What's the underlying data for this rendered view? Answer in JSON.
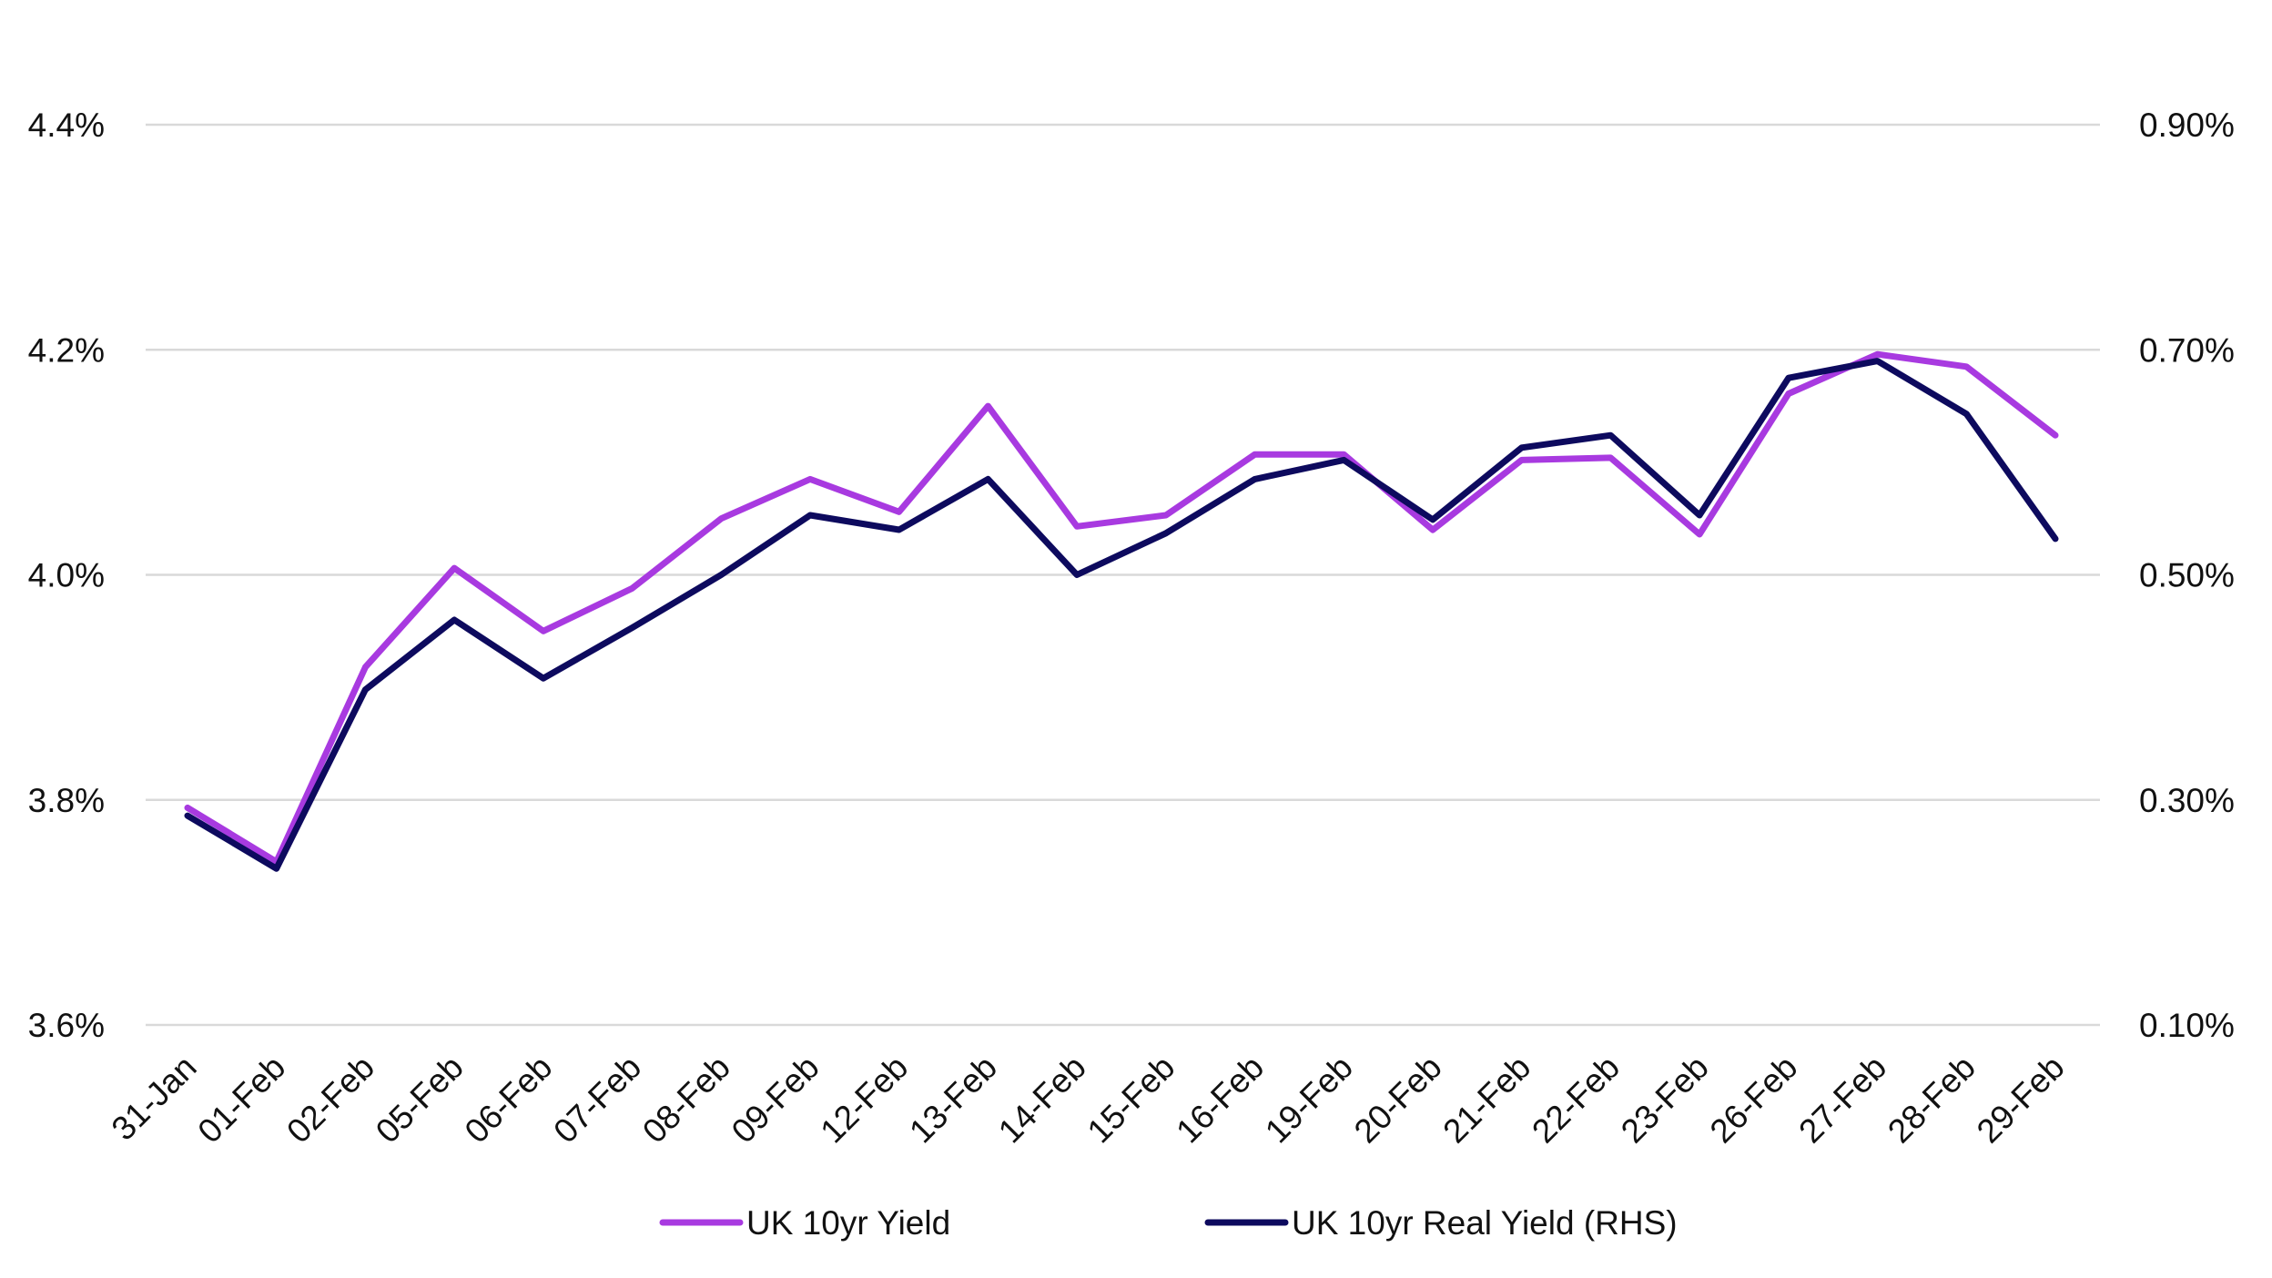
{
  "chart_data": {
    "type": "line",
    "categories": [
      "31-Jan",
      "01-Feb",
      "02-Feb",
      "05-Feb",
      "06-Feb",
      "07-Feb",
      "08-Feb",
      "09-Feb",
      "12-Feb",
      "13-Feb",
      "14-Feb",
      "15-Feb",
      "16-Feb",
      "19-Feb",
      "20-Feb",
      "21-Feb",
      "22-Feb",
      "23-Feb",
      "26-Feb",
      "27-Feb",
      "28-Feb",
      "29-Feb"
    ],
    "left_axis": {
      "ylim": [
        3.6,
        4.4
      ],
      "ticks": [
        3.6,
        3.8,
        4.0,
        4.2,
        4.4
      ],
      "tick_labels": [
        "3.6%",
        "3.8%",
        "4.0%",
        "4.2%",
        "4.4%"
      ]
    },
    "right_axis": {
      "ylim": [
        0.1,
        0.9
      ],
      "ticks": [
        0.1,
        0.3,
        0.5,
        0.7,
        0.9
      ],
      "tick_labels": [
        "0.10%",
        "0.30%",
        "0.50%",
        "0.70%",
        "0.90%"
      ]
    },
    "grid": true,
    "legend_position": "bottom",
    "series": [
      {
        "name": "UK 10yr Yield",
        "axis": "left",
        "color": "#a83ae0",
        "values": [
          3.793,
          3.745,
          3.918,
          4.006,
          3.95,
          3.988,
          4.05,
          4.085,
          4.056,
          4.15,
          4.043,
          4.053,
          4.107,
          4.107,
          4.04,
          4.102,
          4.104,
          4.036,
          4.161,
          4.196,
          4.185,
          4.124
        ]
      },
      {
        "name": "UK 10yr Real Yield (RHS)",
        "axis": "right",
        "color": "#0d0a5e",
        "values": [
          0.286,
          0.239,
          0.398,
          0.46,
          0.408,
          0.453,
          0.5,
          0.553,
          0.54,
          0.585,
          0.5,
          0.537,
          0.585,
          0.602,
          0.549,
          0.613,
          0.624,
          0.553,
          0.675,
          0.69,
          0.643,
          0.532
        ]
      }
    ]
  }
}
